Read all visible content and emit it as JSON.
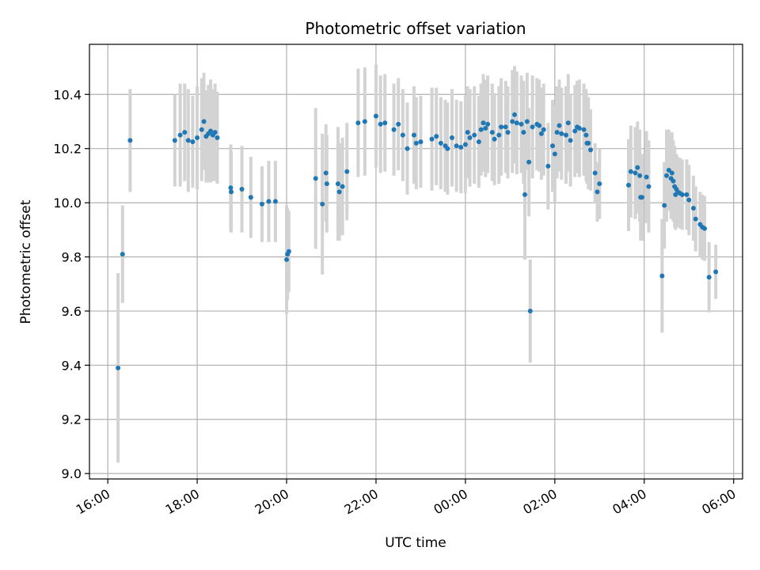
{
  "chart_data": {
    "type": "scatter",
    "title": "Photometric offset variation",
    "xlabel": "UTC time",
    "ylabel": "Photometric offset",
    "grid": true,
    "x_unit": "hours since 16:00 UTC",
    "xlim": [
      -0.41,
      14.2
    ],
    "ylim": [
      8.98,
      10.585
    ],
    "x_ticks": [
      {
        "value": 0,
        "label": "16:00"
      },
      {
        "value": 2,
        "label": "18:00"
      },
      {
        "value": 4,
        "label": "20:00"
      },
      {
        "value": 6,
        "label": "22:00"
      },
      {
        "value": 8,
        "label": "00:00"
      },
      {
        "value": 10,
        "label": "02:00"
      },
      {
        "value": 12,
        "label": "04:00"
      },
      {
        "value": 14,
        "label": "06:00"
      }
    ],
    "y_ticks": [
      {
        "value": 9.0,
        "label": "9.0"
      },
      {
        "value": 9.2,
        "label": "9.2"
      },
      {
        "value": 9.4,
        "label": "9.4"
      },
      {
        "value": 9.6,
        "label": "9.6"
      },
      {
        "value": 9.8,
        "label": "9.8"
      },
      {
        "value": 10.0,
        "label": "10.0"
      },
      {
        "value": 10.2,
        "label": "10.2"
      },
      {
        "value": 10.4,
        "label": "10.4"
      }
    ],
    "colors": {
      "point": "#1f77b4",
      "errorbar": "#d3d3d3",
      "grid": "#b0b0b0"
    },
    "points": [
      [
        0.23,
        9.39,
        0.35
      ],
      [
        0.33,
        9.81,
        0.18
      ],
      [
        0.5,
        10.23,
        0.19
      ],
      [
        1.5,
        10.23,
        0.17
      ],
      [
        1.62,
        10.25,
        0.19
      ],
      [
        1.72,
        10.26,
        0.18
      ],
      [
        1.8,
        10.23,
        0.19
      ],
      [
        1.9,
        10.225,
        0.17
      ],
      [
        2.0,
        10.24,
        0.19
      ],
      [
        2.1,
        10.27,
        0.19
      ],
      [
        2.15,
        10.3,
        0.18
      ],
      [
        2.2,
        10.245,
        0.17
      ],
      [
        2.25,
        10.255,
        0.18
      ],
      [
        2.3,
        10.265,
        0.19
      ],
      [
        2.35,
        10.25,
        0.17
      ],
      [
        2.4,
        10.26,
        0.18
      ],
      [
        2.45,
        10.24,
        0.17
      ],
      [
        2.75,
        10.055,
        0.16
      ],
      [
        2.76,
        10.04,
        0.15
      ],
      [
        3.0,
        10.05,
        0.16
      ],
      [
        3.2,
        10.02,
        0.15
      ],
      [
        3.45,
        9.995,
        0.14
      ],
      [
        3.6,
        10.005,
        0.15
      ],
      [
        3.75,
        10.005,
        0.15
      ],
      [
        4.0,
        9.79,
        0.2
      ],
      [
        4.02,
        9.81,
        0.17
      ],
      [
        4.05,
        9.82,
        0.15
      ],
      [
        4.65,
        10.09,
        0.26
      ],
      [
        4.8,
        9.995,
        0.26
      ],
      [
        4.88,
        10.11,
        0.18
      ],
      [
        4.9,
        10.07,
        0.18
      ],
      [
        5.15,
        10.07,
        0.21
      ],
      [
        5.18,
        10.04,
        0.18
      ],
      [
        5.25,
        10.06,
        0.18
      ],
      [
        5.35,
        10.115,
        0.18
      ],
      [
        5.6,
        10.295,
        0.2
      ],
      [
        5.75,
        10.3,
        0.2
      ],
      [
        6.0,
        10.32,
        0.19
      ],
      [
        6.1,
        10.29,
        0.18
      ],
      [
        6.2,
        10.295,
        0.18
      ],
      [
        6.4,
        10.27,
        0.17
      ],
      [
        6.5,
        10.29,
        0.17
      ],
      [
        6.6,
        10.25,
        0.17
      ],
      [
        6.7,
        10.2,
        0.17
      ],
      [
        6.85,
        10.25,
        0.18
      ],
      [
        6.9,
        10.22,
        0.17
      ],
      [
        7.0,
        10.225,
        0.17
      ],
      [
        7.25,
        10.235,
        0.19
      ],
      [
        7.35,
        10.245,
        0.18
      ],
      [
        7.45,
        10.22,
        0.17
      ],
      [
        7.55,
        10.21,
        0.17
      ],
      [
        7.6,
        10.2,
        0.17
      ],
      [
        7.7,
        10.24,
        0.18
      ],
      [
        7.8,
        10.21,
        0.17
      ],
      [
        7.9,
        10.205,
        0.17
      ],
      [
        8.0,
        10.215,
        0.18
      ],
      [
        8.05,
        10.26,
        0.17
      ],
      [
        8.1,
        10.24,
        0.18
      ],
      [
        8.2,
        10.25,
        0.18
      ],
      [
        8.3,
        10.225,
        0.17
      ],
      [
        8.35,
        10.27,
        0.17
      ],
      [
        8.4,
        10.295,
        0.18
      ],
      [
        8.45,
        10.275,
        0.18
      ],
      [
        8.5,
        10.29,
        0.18
      ],
      [
        8.6,
        10.26,
        0.18
      ],
      [
        8.65,
        10.235,
        0.17
      ],
      [
        8.75,
        10.25,
        0.18
      ],
      [
        8.8,
        10.28,
        0.18
      ],
      [
        8.9,
        10.28,
        0.17
      ],
      [
        8.95,
        10.26,
        0.17
      ],
      [
        9.05,
        10.3,
        0.19
      ],
      [
        9.1,
        10.325,
        0.18
      ],
      [
        9.15,
        10.295,
        0.19
      ],
      [
        9.25,
        10.29,
        0.18
      ],
      [
        9.3,
        10.26,
        0.19
      ],
      [
        9.33,
        10.03,
        0.24
      ],
      [
        9.38,
        10.3,
        0.18
      ],
      [
        9.42,
        10.15,
        0.2
      ],
      [
        9.45,
        9.6,
        0.19
      ],
      [
        9.5,
        10.28,
        0.19
      ],
      [
        9.6,
        10.29,
        0.17
      ],
      [
        9.65,
        10.285,
        0.17
      ],
      [
        9.7,
        10.255,
        0.17
      ],
      [
        9.75,
        10.27,
        0.17
      ],
      [
        9.85,
        10.135,
        0.16
      ],
      [
        9.95,
        10.21,
        0.17
      ],
      [
        10.0,
        10.18,
        0.18
      ],
      [
        10.05,
        10.26,
        0.17
      ],
      [
        10.1,
        10.285,
        0.17
      ],
      [
        10.15,
        10.255,
        0.17
      ],
      [
        10.25,
        10.25,
        0.18
      ],
      [
        10.3,
        10.295,
        0.18
      ],
      [
        10.35,
        10.23,
        0.17
      ],
      [
        10.45,
        10.265,
        0.17
      ],
      [
        10.5,
        10.28,
        0.17
      ],
      [
        10.55,
        10.275,
        0.18
      ],
      [
        10.65,
        10.27,
        0.17
      ],
      [
        10.7,
        10.25,
        0.17
      ],
      [
        10.72,
        10.22,
        0.15
      ],
      [
        10.75,
        10.22,
        0.17
      ],
      [
        10.8,
        10.195,
        0.15
      ],
      [
        10.9,
        10.11,
        0.11
      ],
      [
        10.95,
        10.04,
        0.11
      ],
      [
        11.0,
        10.07,
        0.13
      ],
      [
        11.65,
        10.065,
        0.17
      ],
      [
        11.7,
        10.115,
        0.17
      ],
      [
        11.8,
        10.11,
        0.17
      ],
      [
        11.85,
        10.13,
        0.17
      ],
      [
        11.9,
        10.1,
        0.17
      ],
      [
        11.92,
        10.02,
        0.16
      ],
      [
        11.95,
        10.02,
        0.16
      ],
      [
        12.05,
        10.095,
        0.17
      ],
      [
        12.1,
        10.06,
        0.17
      ],
      [
        12.4,
        9.73,
        0.21
      ],
      [
        12.45,
        9.99,
        0.16
      ],
      [
        12.5,
        10.1,
        0.17
      ],
      [
        12.55,
        10.12,
        0.15
      ],
      [
        12.6,
        10.09,
        0.15
      ],
      [
        12.62,
        10.11,
        0.15
      ],
      [
        12.65,
        10.08,
        0.15
      ],
      [
        12.68,
        10.06,
        0.15
      ],
      [
        12.7,
        10.03,
        0.13
      ],
      [
        12.72,
        10.05,
        0.13
      ],
      [
        12.75,
        10.04,
        0.13
      ],
      [
        12.8,
        10.035,
        0.13
      ],
      [
        12.85,
        10.03,
        0.13
      ],
      [
        12.95,
        10.03,
        0.13
      ],
      [
        13.0,
        10.01,
        0.13
      ],
      [
        13.1,
        9.98,
        0.12
      ],
      [
        13.15,
        9.94,
        0.12
      ],
      [
        13.25,
        9.92,
        0.12
      ],
      [
        13.3,
        9.91,
        0.12
      ],
      [
        13.35,
        9.905,
        0.12
      ],
      [
        13.45,
        9.725,
        0.13
      ],
      [
        13.6,
        9.745,
        0.1
      ]
    ]
  }
}
